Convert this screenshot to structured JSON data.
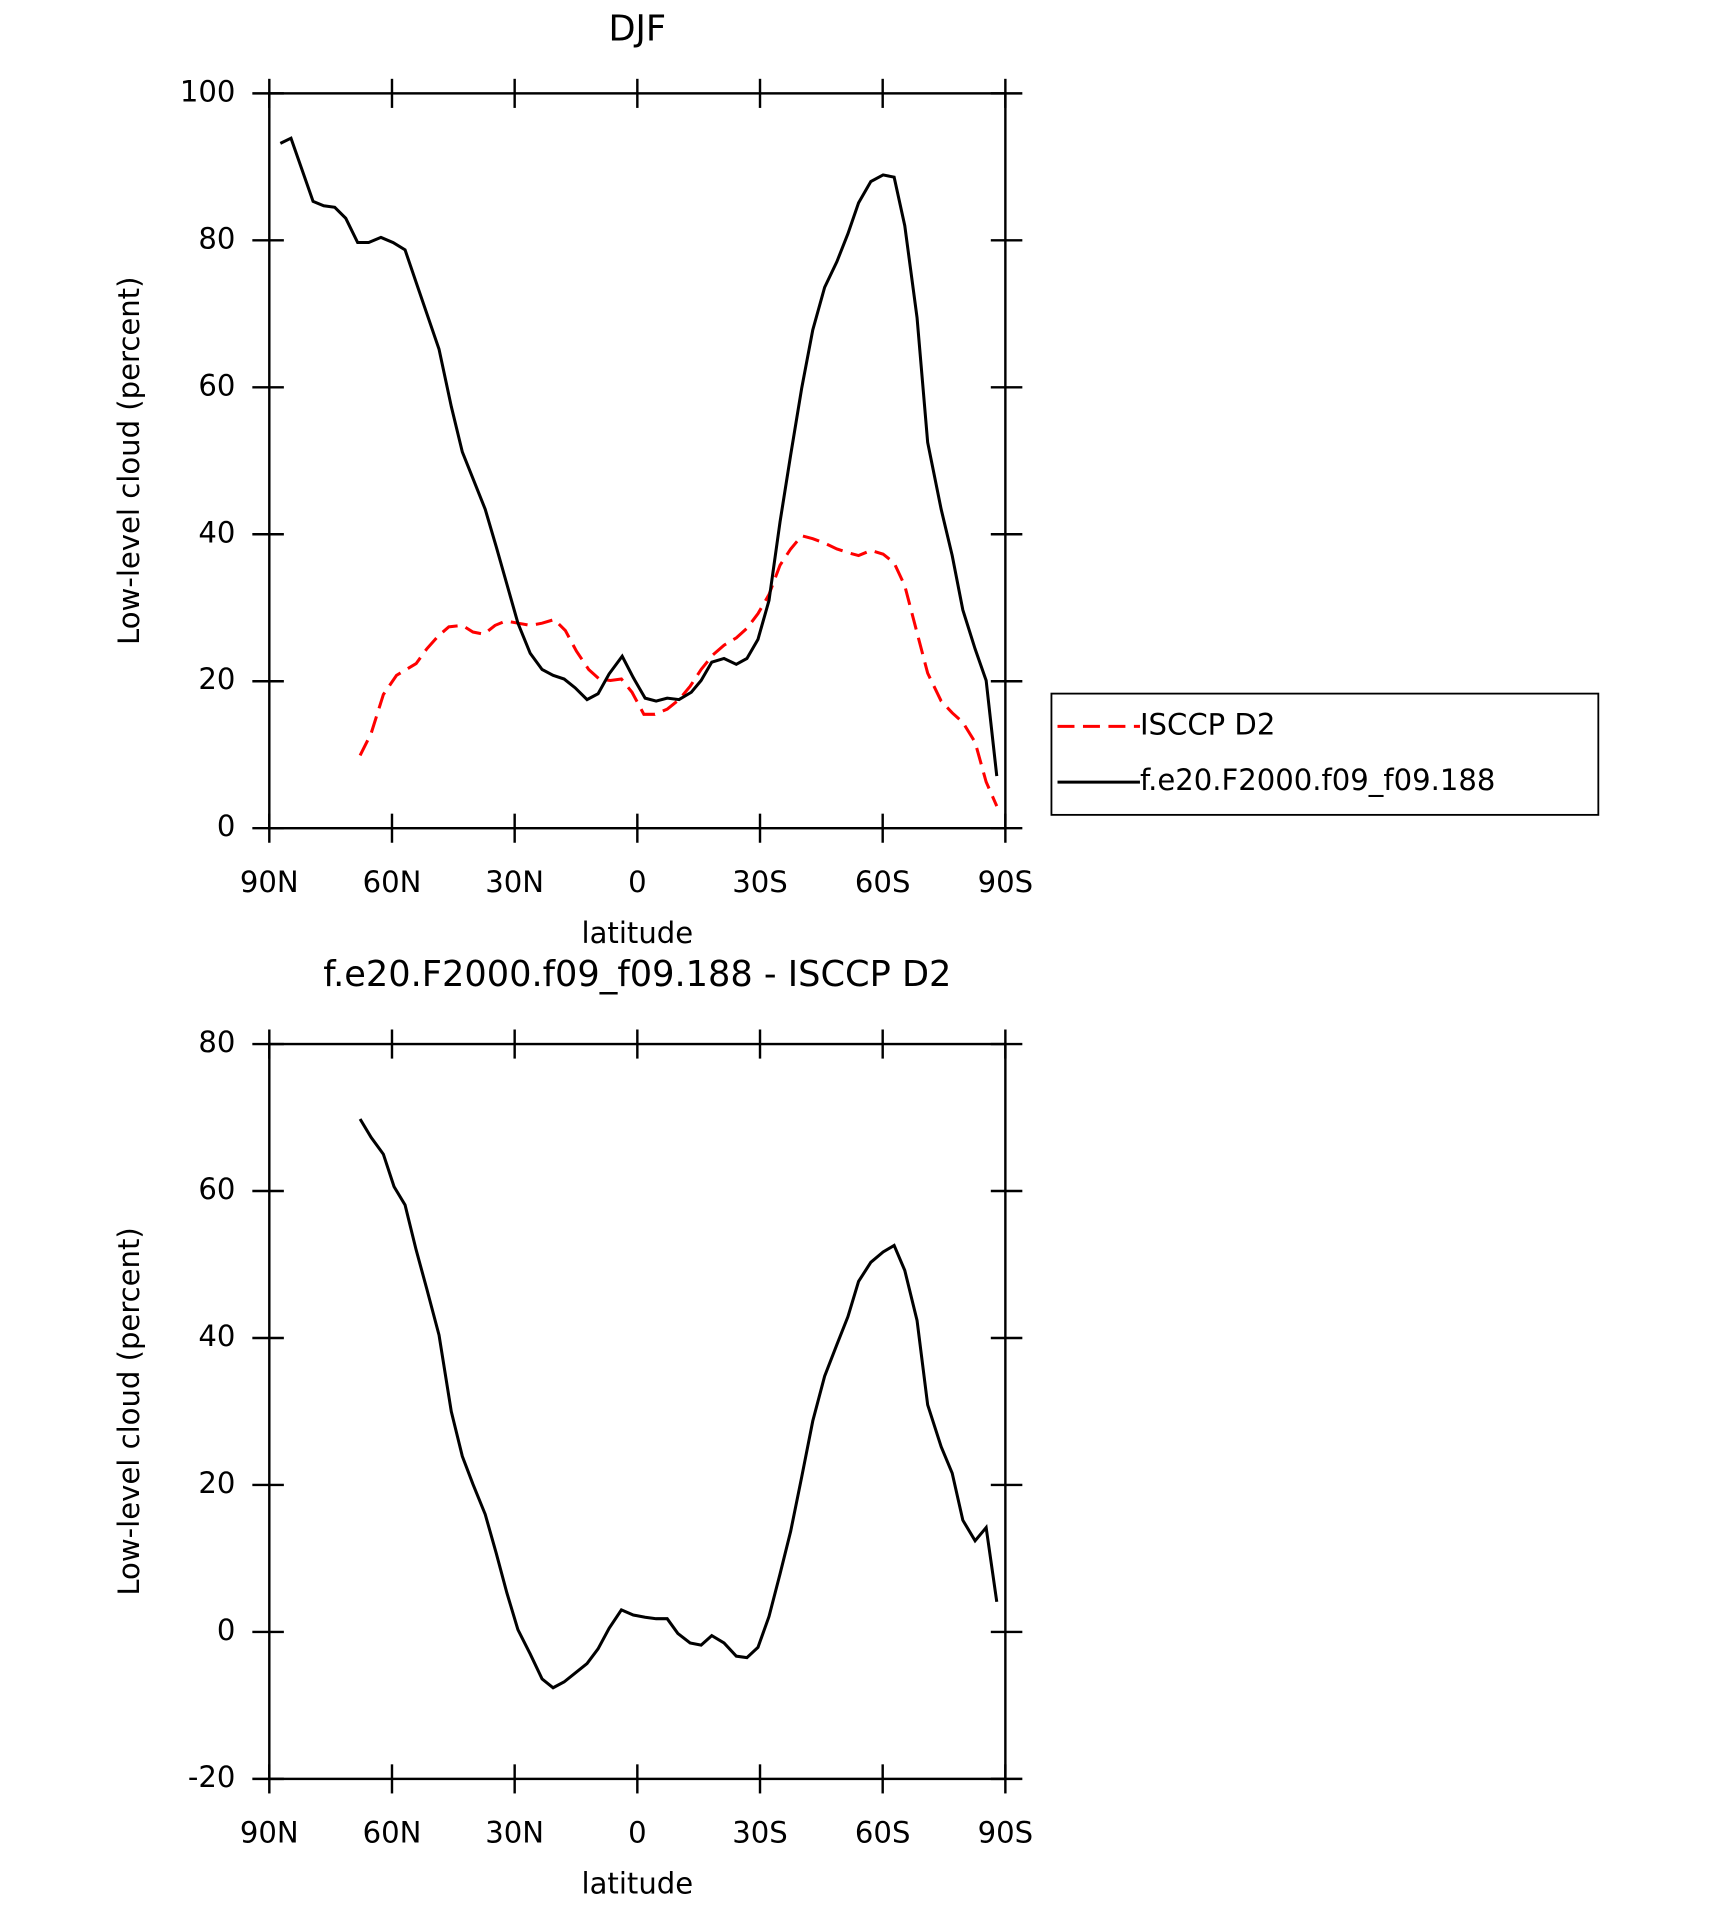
{
  "chart_data": [
    {
      "type": "line",
      "title": "DJF",
      "xlabel": "latitude",
      "ylabel": "Low-level cloud (percent)",
      "xlim": [
        90,
        -90
      ],
      "xticks": [
        {
          "value": 90,
          "label": "90N"
        },
        {
          "value": 60,
          "label": "60N"
        },
        {
          "value": 30,
          "label": "30N"
        },
        0,
        {
          "value": -30,
          "label": "30S"
        },
        {
          "value": -60,
          "label": "60S"
        },
        {
          "value": -90,
          "label": "90S"
        }
      ],
      "ylim": [
        0,
        100
      ],
      "yticks": [
        0,
        20,
        40,
        60,
        80,
        100
      ],
      "legend": "outside-right",
      "series": [
        {
          "name": "ISCCP D2",
          "color": "#ff0000",
          "style": "dashed",
          "x": [
            67.8,
            65.1,
            62.1,
            58.9,
            54.1,
            51.5,
            48.8,
            46.1,
            42.8,
            40.2,
            37.5,
            34.8,
            32.2,
            29.2,
            26.2,
            23.3,
            20.3,
            17.6,
            14.9,
            11.9,
            9.3,
            6.6,
            3.9,
            1.3,
            -1.6,
            -4.3,
            -7.3,
            -10.2,
            -12.9,
            -15.6,
            -18.5,
            -21.2,
            -24.2,
            -26.8,
            -29.5,
            -32.2,
            -34.9,
            -37.5,
            -40.2,
            -42.9,
            -45.8,
            -48.8,
            -51.5,
            -54.1,
            -57.1,
            -60.1,
            -62.8,
            -65.4,
            -68.4,
            -71,
            -74.3,
            -77,
            -79.6,
            -82.6,
            -85.3,
            -87.9
          ],
          "values": [
            9.9,
            12.9,
            18.2,
            20.8,
            22.4,
            24.4,
            26.1,
            27.4,
            27.6,
            26.7,
            26.4,
            27.6,
            28.2,
            27.9,
            27.6,
            27.9,
            28.4,
            26.9,
            24.1,
            21.6,
            20.3,
            20.1,
            20.3,
            18.5,
            15.5,
            15.5,
            16.2,
            17.5,
            19.3,
            21.6,
            23.6,
            24.9,
            25.9,
            27.2,
            29.2,
            31.8,
            35.8,
            38,
            39.8,
            39.4,
            38.8,
            38,
            37.5,
            37.1,
            37.8,
            37.3,
            36.1,
            33,
            26.6,
            21.1,
            17.3,
            15.7,
            14.4,
            11.7,
            6.3,
            3
          ]
        },
        {
          "name": "f.e20.F2000.f09_f09.188",
          "color": "#000000",
          "style": "solid",
          "x": [
            87.3,
            84.7,
            82,
            79.3,
            76.7,
            74,
            71.3,
            68.4,
            65.7,
            62.7,
            59.7,
            56.8,
            53.8,
            48.5,
            45.5,
            42.8,
            37.2,
            34.5,
            31.9,
            29.2,
            26.2,
            23.3,
            20.6,
            17.9,
            15.2,
            12.3,
            9.6,
            6.9,
            3.7,
            1,
            -1.9,
            -4.6,
            -7.3,
            -10.2,
            -13.2,
            -15.6,
            -18.2,
            -21.2,
            -24.2,
            -26.8,
            -29.5,
            -32.2,
            -34.9,
            -37.5,
            -40.2,
            -42.9,
            -45.8,
            -48.8,
            -51.5,
            -54.1,
            -57.1,
            -60.1,
            -62.8,
            -65.4,
            -68.4,
            -71,
            -74.3,
            -77,
            -79.6,
            -82.6,
            -85.3,
            -87.9
          ],
          "values": [
            93.2,
            93.9,
            89.6,
            85.3,
            84.7,
            84.5,
            83,
            79.7,
            79.7,
            80.4,
            79.7,
            78.7,
            73.8,
            65.2,
            57.4,
            51.2,
            43.4,
            38.3,
            33.2,
            27.9,
            23.8,
            21.6,
            20.8,
            20.3,
            19.1,
            17.5,
            18.3,
            21,
            23.4,
            20.5,
            17.7,
            17.3,
            17.7,
            17.5,
            18.5,
            20.1,
            22.6,
            23.1,
            22.3,
            23.1,
            25.7,
            31,
            41.7,
            50.8,
            59.9,
            67.8,
            73.6,
            77.1,
            80.9,
            85.1,
            88,
            88.9,
            88.6,
            82,
            69.5,
            52.5,
            43.4,
            37.1,
            29.7,
            24.4,
            20.1,
            7.1
          ]
        }
      ]
    },
    {
      "type": "line",
      "title": "f.e20.F2000.f09_f09.188 - ISCCP D2",
      "xlabel": "latitude",
      "ylabel": "Low-level cloud (percent)",
      "xlim": [
        90,
        -90
      ],
      "xticks": [
        {
          "value": 90,
          "label": "90N"
        },
        {
          "value": 60,
          "label": "60N"
        },
        {
          "value": 30,
          "label": "30N"
        },
        0,
        {
          "value": -30,
          "label": "30S"
        },
        {
          "value": -60,
          "label": "60S"
        },
        {
          "value": -90,
          "label": "90S"
        }
      ],
      "ylim": [
        -20,
        80
      ],
      "yticks": [
        -20,
        0,
        20,
        40,
        60,
        80
      ],
      "color": "#000000",
      "x": [
        67.8,
        65.1,
        62.1,
        59.5,
        56.8,
        54.1,
        51.5,
        48.5,
        45.5,
        42.8,
        40.2,
        37.2,
        34.5,
        31.9,
        29.2,
        26.2,
        23.3,
        20.6,
        17.9,
        15.2,
        12.3,
        9.6,
        6.9,
        3.9,
        1,
        -1.9,
        -4.6,
        -7.3,
        -9.9,
        -12.9,
        -15.6,
        -18.2,
        -21.2,
        -24.2,
        -26.8,
        -29.5,
        -32.2,
        -34.9,
        -37.5,
        -40.2,
        -42.9,
        -45.8,
        -48.8,
        -51.5,
        -54.1,
        -57.1,
        -60.1,
        -62.8,
        -65.4,
        -68.4,
        -71,
        -74.3,
        -77,
        -79.6,
        -82.6,
        -85.3,
        -87.9
      ],
      "values": [
        69.8,
        67.3,
        65,
        60.6,
        58.1,
        52,
        46.7,
        40.4,
        30,
        23.9,
        20.1,
        16,
        10.7,
        5.3,
        0.3,
        -3,
        -6.4,
        -7.6,
        -6.8,
        -5.6,
        -4.3,
        -2.3,
        0.5,
        3,
        2.3,
        2,
        1.8,
        1.8,
        -0.2,
        -1.5,
        -1.8,
        -0.5,
        -1.5,
        -3.3,
        -3.5,
        -2.1,
        2.1,
        7.9,
        13.7,
        21.1,
        28.7,
        34.8,
        39.1,
        42.9,
        47.7,
        50.3,
        51.7,
        52.6,
        49.2,
        42.4,
        30.9,
        25.2,
        21.6,
        15.2,
        12.4,
        14.2,
        4.1
      ]
    }
  ]
}
